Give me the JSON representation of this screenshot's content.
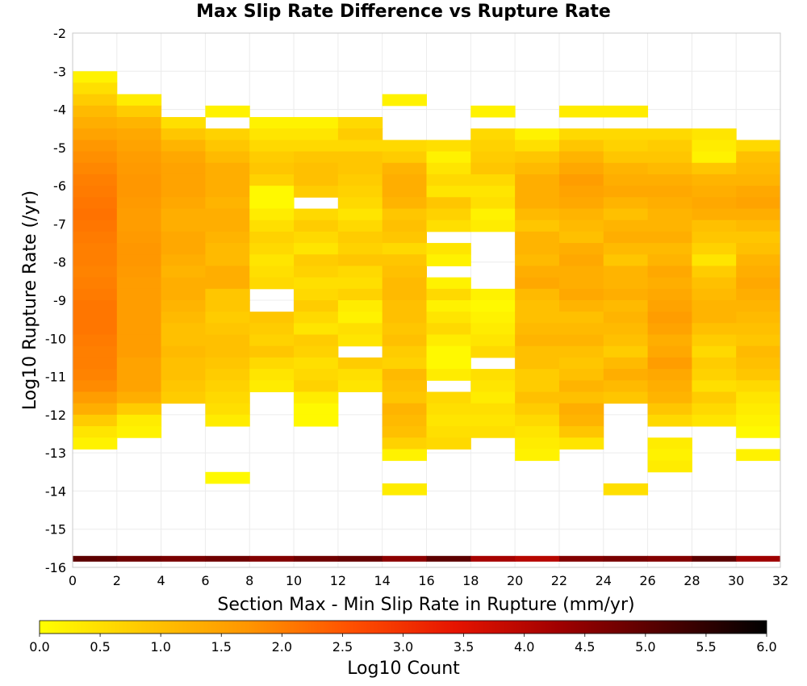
{
  "chart_data": {
    "type": "heatmap",
    "title": "Max Slip Rate Difference vs Rupture Rate",
    "xlabel": "Section Max - Min Slip Rate in Rupture (mm/yr)",
    "ylabel": "Log10 Rupture Rate (/yr)",
    "xlim": [
      0,
      32
    ],
    "ylim": [
      -16,
      -2
    ],
    "x_ticks": [
      0,
      2,
      4,
      6,
      8,
      10,
      12,
      14,
      16,
      18,
      20,
      22,
      24,
      26,
      28,
      30,
      32
    ],
    "y_ticks": [
      -2,
      -3,
      -4,
      -5,
      -6,
      -7,
      -8,
      -9,
      -10,
      -11,
      -12,
      -13,
      -14,
      -15,
      -16
    ],
    "x_bin_width": 2,
    "y_bin_height": 0.3,
    "grid": true,
    "colorbar": {
      "label": "Log10 Count",
      "range": [
        0,
        6
      ],
      "ticks": [
        "0.0",
        "0.5",
        "1.0",
        "1.5",
        "2.0",
        "2.5",
        "3.0",
        "3.5",
        "4.0",
        "4.5",
        "5.0",
        "5.5",
        "6.0"
      ],
      "colors": [
        "#ffff00",
        "#ffc800",
        "#ff9600",
        "#ff5000",
        "#e61400",
        "#a00000",
        "#500000",
        "#000000"
      ],
      "position": "bottom"
    },
    "columns": [
      {
        "x_start": 0,
        "y_top": -3.0,
        "values": [
          0.2,
          0.5,
          0.8,
          1.1,
          1.3,
          1.5,
          1.7,
          1.8,
          1.9,
          2.0,
          2.05,
          2.1,
          2.15,
          2.1,
          2.05,
          2.0,
          2.0,
          1.95,
          2.0,
          2.05,
          2.1,
          2.1,
          2.1,
          2.05,
          2.0,
          2.0,
          1.95,
          1.85,
          1.6,
          1.3,
          0.8,
          0.4,
          0.2
        ]
      },
      {
        "x_start": 2,
        "y_top": -3.6,
        "values": [
          0.3,
          0.8,
          1.2,
          1.4,
          1.5,
          1.6,
          1.65,
          1.7,
          1.7,
          1.65,
          1.6,
          1.6,
          1.65,
          1.7,
          1.7,
          1.65,
          1.6,
          1.6,
          1.6,
          1.6,
          1.6,
          1.6,
          1.6,
          1.5,
          1.5,
          1.5,
          1.3,
          0.8,
          0.3,
          0.2
        ]
      },
      {
        "x_start": 4,
        "y_top": -4.2,
        "values": [
          0.5,
          0.9,
          1.2,
          1.4,
          1.5,
          1.5,
          1.5,
          1.4,
          1.3,
          1.3,
          1.4,
          1.4,
          1.3,
          1.2,
          1.3,
          1.3,
          1.2,
          1.1,
          1.0,
          1.0,
          1.1,
          1.0,
          1.0,
          0.9,
          0.8
        ]
      },
      {
        "x_start": 6,
        "y_top": -3.9,
        "values": [
          0.2,
          null,
          0.7,
          0.9,
          1.1,
          1.3,
          1.3,
          1.3,
          1.2,
          1.3,
          1.3,
          1.2,
          1.1,
          1.1,
          1.3,
          1.3,
          0.9,
          0.9,
          0.8,
          0.9,
          1.0,
          1.0,
          0.9,
          0.8,
          0.7,
          0.6,
          0.5,
          0.3,
          null,
          null,
          null,
          null,
          0.1
        ]
      },
      {
        "x_start": 8,
        "y_top": -4.2,
        "values": [
          0.2,
          0.4,
          0.6,
          0.8,
          0.9,
          0.7,
          0.1,
          0.1,
          0.3,
          0.5,
          0.7,
          0.6,
          0.4,
          0.5,
          0.6,
          null,
          null,
          0.9,
          0.8,
          0.7,
          0.9,
          0.6,
          0.4,
          0.3
        ]
      },
      {
        "x_start": 10,
        "y_top": -4.2,
        "values": [
          0.2,
          0.4,
          0.6,
          0.9,
          1.0,
          1.0,
          0.8,
          null,
          0.6,
          0.8,
          0.6,
          0.4,
          0.8,
          0.7,
          0.5,
          0.6,
          0.8,
          0.6,
          0.4,
          0.8,
          0.7,
          0.5,
          0.6,
          0.7,
          0.3,
          0.1,
          0.1
        ]
      },
      {
        "x_start": 12,
        "y_top": -4.2,
        "values": [
          0.6,
          0.8,
          0.6,
          0.9,
          0.9,
          0.8,
          0.7,
          0.6,
          0.4,
          0.6,
          0.8,
          0.7,
          0.9,
          0.6,
          0.5,
          0.7,
          0.3,
          0.2,
          0.5,
          0.4,
          null,
          0.8,
          0.5,
          0.4
        ]
      },
      {
        "x_start": 14,
        "y_top": -3.6,
        "values": [
          0.2,
          null,
          null,
          null,
          0.6,
          0.8,
          1.2,
          1.3,
          1.3,
          1.2,
          0.9,
          1.0,
          0.9,
          0.6,
          0.9,
          1.0,
          1.1,
          1.1,
          1.0,
          1.0,
          0.9,
          1.0,
          0.8,
          0.7,
          1.1,
          1.0,
          0.9,
          1.2,
          1.1,
          1.0,
          0.7,
          0.2,
          null,
          null,
          0.3
        ]
      },
      {
        "x_start": 16,
        "y_top": -4.8,
        "values": [
          0.5,
          0.2,
          0.4,
          0.6,
          0.4,
          0.9,
          0.7,
          0.5,
          null,
          0.4,
          0.2,
          null,
          0.2,
          0.6,
          0.2,
          0.4,
          0.6,
          0.3,
          0.1,
          0.1,
          0.3,
          null,
          0.6,
          0.5,
          0.4,
          0.5,
          0.6
        ]
      },
      {
        "x_start": 18,
        "y_top": -3.9,
        "values": [
          0.2,
          null,
          0.6,
          0.7,
          0.8,
          0.9,
          0.6,
          0.4,
          0.5,
          0.2,
          0.3,
          null,
          null,
          null,
          null,
          null,
          0.2,
          0.1,
          0.2,
          0.3,
          0.4,
          0.6,
          null,
          0.5,
          0.4,
          0.3,
          0.5,
          0.4,
          0.5
        ]
      },
      {
        "x_start": 20,
        "y_top": -4.5,
        "values": [
          0.2,
          0.5,
          0.9,
          1.1,
          1.3,
          1.3,
          1.3,
          1.1,
          0.9,
          1.2,
          1.2,
          1.1,
          1.3,
          1.4,
          1.1,
          1.0,
          1.0,
          1.1,
          1.2,
          1.0,
          1.0,
          0.8,
          0.8,
          1.0,
          0.8,
          0.6,
          0.4,
          0.3,
          0.2
        ]
      },
      {
        "x_start": 22,
        "y_top": -3.9,
        "values": [
          0.3,
          null,
          0.6,
          0.9,
          1.2,
          1.4,
          1.6,
          1.5,
          1.4,
          1.2,
          1.1,
          1.0,
          1.3,
          1.4,
          1.3,
          1.3,
          1.4,
          1.2,
          1.0,
          1.1,
          1.2,
          1.0,
          0.9,
          1.0,
          1.2,
          1.0,
          1.3,
          1.2,
          0.9,
          0.4
        ]
      },
      {
        "x_start": 24,
        "y_top": -3.9,
        "values": [
          0.3,
          null,
          0.6,
          0.7,
          0.9,
          1.2,
          1.3,
          1.4,
          1.2,
          1.0,
          1.2,
          1.3,
          1.1,
          0.9,
          1.2,
          1.2,
          1.3,
          1.1,
          1.2,
          1.1,
          1.0,
          0.8,
          1.1,
          1.3,
          1.1,
          0.9,
          null,
          null,
          null,
          null,
          null,
          null,
          null,
          0.5
        ]
      },
      {
        "x_start": 26,
        "y_top": -4.5,
        "values": [
          0.6,
          0.8,
          0.9,
          1.1,
          1.3,
          1.4,
          1.3,
          1.2,
          1.2,
          1.3,
          1.1,
          1.2,
          1.4,
          1.3,
          1.4,
          1.5,
          1.6,
          1.5,
          1.3,
          1.4,
          1.6,
          1.4,
          1.3,
          1.2,
          0.9,
          0.6,
          null,
          0.3,
          0.2,
          0.3
        ]
      },
      {
        "x_start": 28,
        "y_top": -4.5,
        "values": [
          0.4,
          0.3,
          0.2,
          0.9,
          1.2,
          1.3,
          1.4,
          1.3,
          1.0,
          0.9,
          0.7,
          0.4,
          0.8,
          1.0,
          1.1,
          1.2,
          1.2,
          1.0,
          0.8,
          0.6,
          0.8,
          0.7,
          0.5,
          0.8,
          0.6,
          0.4
        ]
      },
      {
        "x_start": 30,
        "y_top": -4.8,
        "values": [
          0.6,
          1.0,
          1.1,
          1.2,
          1.4,
          1.5,
          1.3,
          1.1,
          0.9,
          1.0,
          1.2,
          1.3,
          1.4,
          1.3,
          1.2,
          1.1,
          1.0,
          0.9,
          1.1,
          1.0,
          0.9,
          0.6,
          0.4,
          0.3,
          0.2,
          0.1,
          null,
          0.2
        ]
      }
    ],
    "bottom_strip": [
      5.0,
      4.8,
      4.7,
      4.8,
      4.6,
      4.8,
      4.9,
      4.5,
      5.0,
      4.2,
      4.0,
      4.6,
      4.7,
      4.6,
      5.0,
      4.3
    ]
  }
}
